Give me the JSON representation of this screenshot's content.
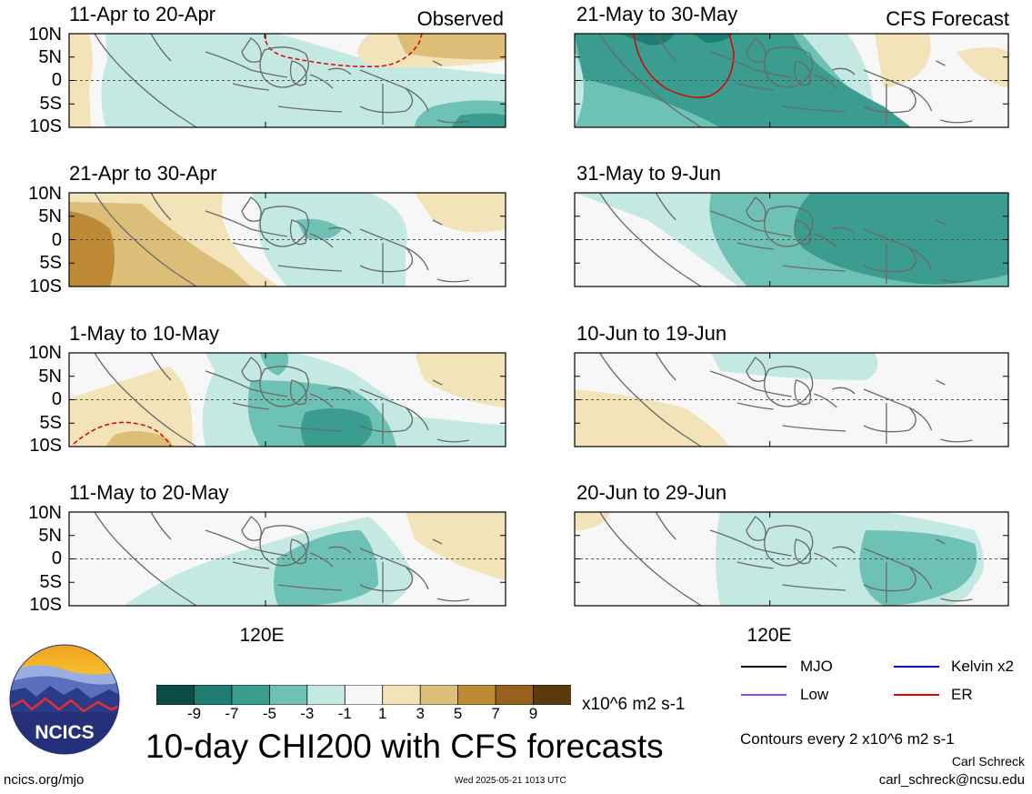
{
  "left_column_tag": "Observed",
  "right_column_tag": "CFS Forecast",
  "lat_labels": [
    "10N",
    "5N",
    "0",
    "5S",
    "10S"
  ],
  "lon_label": "120E",
  "panels": [
    {
      "title": "11-Apr to 20-Apr",
      "column": "left",
      "row": 0
    },
    {
      "title": "21-Apr to 30-Apr",
      "column": "left",
      "row": 1
    },
    {
      "title": "1-May to 10-May",
      "column": "left",
      "row": 2
    },
    {
      "title": "11-May to 20-May",
      "column": "left",
      "row": 3
    },
    {
      "title": "21-May to 30-May",
      "column": "right",
      "row": 0
    },
    {
      "title": "31-May to 9-Jun",
      "column": "right",
      "row": 1
    },
    {
      "title": "10-Jun to 19-Jun",
      "column": "right",
      "row": 2
    },
    {
      "title": "20-Jun to 29-Jun",
      "column": "right",
      "row": 3
    }
  ],
  "colorbar": {
    "labels": [
      "-9",
      "-7",
      "-5",
      "-3",
      "-1",
      "1",
      "3",
      "5",
      "7",
      "9"
    ],
    "colors": [
      "#0c4a45",
      "#1f7c72",
      "#3b9c90",
      "#6ec2b5",
      "#c4e9e2",
      "#f7f7f7",
      "#f3e3b8",
      "#ddbe78",
      "#bf8a35",
      "#98621e",
      "#5c3a0e"
    ],
    "units": "x10^6 m2 s-1"
  },
  "main_title": "10-day CHI200 with CFS forecasts",
  "legend": [
    {
      "label": "MJO",
      "color": "#000000"
    },
    {
      "label": "Kelvin x2",
      "color": "#0000cc"
    },
    {
      "label": "Low",
      "color": "#9b44e0"
    },
    {
      "label": "ER",
      "color": "#dd0000"
    }
  ],
  "contour_note": "Contours every 2 x10^6 m2 s-1",
  "author": "Carl Schreck",
  "email": "carl_schreck@ncsu.edu",
  "website": "ncics.org/mjo",
  "timestamp": "Wed 2025-05-21 1013 UTC",
  "logo_text": "NCICS"
}
